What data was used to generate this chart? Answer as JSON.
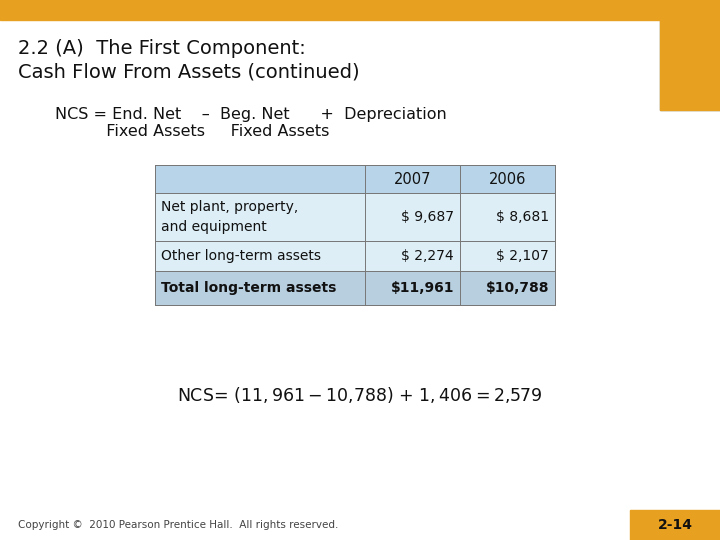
{
  "title_line1": "2.2 (A)  The First Component:",
  "title_line2": "Cash Flow From Assets (continued)",
  "formula_line1": "NCS = End. Net    –  Beg. Net      +  Depreciation",
  "formula_line2": "          Fixed Assets     Fixed Assets",
  "table_header": [
    "",
    "2007",
    "2006"
  ],
  "table_rows": [
    [
      "Net plant, property,\nand equipment",
      "$ 9,687",
      "$ 8,681"
    ],
    [
      "Other long-term assets",
      "$ 2,274",
      "$ 2,107"
    ],
    [
      "Total long-term assets",
      "$11,961",
      "$10,788"
    ]
  ],
  "ncs_formula": "NCS= ($11,961 - $10,788) + $1,406 = $2,579",
  "copyright": "Copyright ©  2010 Pearson Prentice Hall.  All rights reserved.",
  "slide_number": "2-14",
  "bg_color": "#ffffff",
  "header_bar_color": "#E8A020",
  "table_header_bg": "#b8d4e8",
  "table_row_bg": "#ddeef6",
  "table_total_bg": "#b8cfe0",
  "title_color": "#111111",
  "table_border_color": "#777777",
  "slide_num_bg": "#E8A020",
  "slide_num_text": "#111111"
}
